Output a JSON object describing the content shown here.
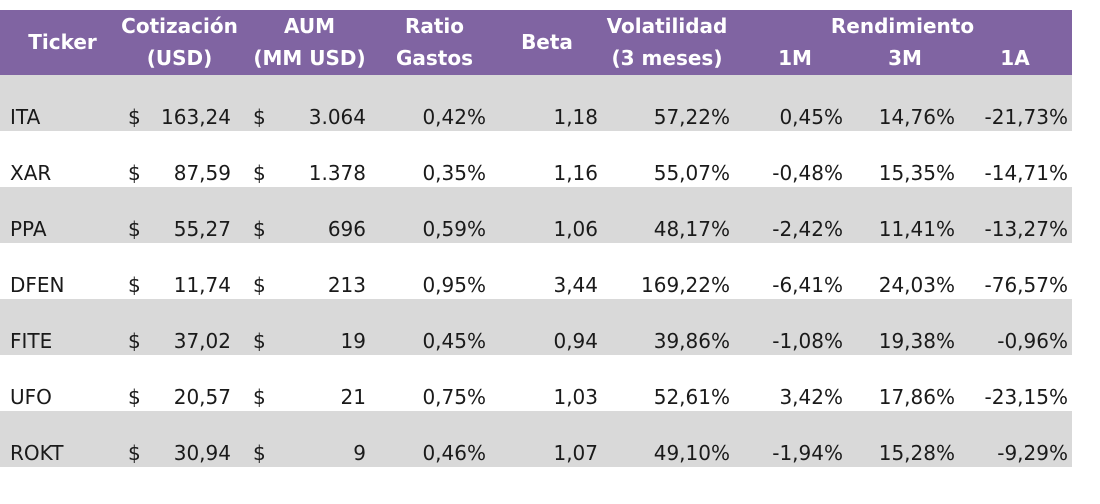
{
  "headers": {
    "ticker": "Ticker",
    "price_line1": "Cotización",
    "price_line2": "(USD)",
    "aum_line1": "AUM",
    "aum_line2": "(MM USD)",
    "ratio_line1": "Ratio",
    "ratio_line2": "Gastos",
    "beta": "Beta",
    "vol_line1": "Volatilidad",
    "vol_line2": "(3 meses)",
    "rend": "Rendimiento",
    "r1m": "1M",
    "r3m": "3M",
    "r1a": "1A"
  },
  "currency_symbol": "$",
  "rows": [
    {
      "ticker": "ITA",
      "price": "163,24",
      "aum": "3.064",
      "ratio": "0,42%",
      "beta": "1,18",
      "vol": "57,22%",
      "r1m": "0,45%",
      "r3m": "14,76%",
      "r1a": "-21,73%"
    },
    {
      "ticker": "XAR",
      "price": "87,59",
      "aum": "1.378",
      "ratio": "0,35%",
      "beta": "1,16",
      "vol": "55,07%",
      "r1m": "-0,48%",
      "r3m": "15,35%",
      "r1a": "-14,71%"
    },
    {
      "ticker": "PPA",
      "price": "55,27",
      "aum": "696",
      "ratio": "0,59%",
      "beta": "1,06",
      "vol": "48,17%",
      "r1m": "-2,42%",
      "r3m": "11,41%",
      "r1a": "-13,27%"
    },
    {
      "ticker": "DFEN",
      "price": "11,74",
      "aum": "213",
      "ratio": "0,95%",
      "beta": "3,44",
      "vol": "169,22%",
      "r1m": "-6,41%",
      "r3m": "24,03%",
      "r1a": "-76,57%"
    },
    {
      "ticker": "FITE",
      "price": "37,02",
      "aum": "19",
      "ratio": "0,45%",
      "beta": "0,94",
      "vol": "39,86%",
      "r1m": "-1,08%",
      "r3m": "19,38%",
      "r1a": "-0,96%"
    },
    {
      "ticker": "UFO",
      "price": "20,57",
      "aum": "21",
      "ratio": "0,75%",
      "beta": "1,03",
      "vol": "52,61%",
      "r1m": "3,42%",
      "r3m": "17,86%",
      "r1a": "-23,15%"
    },
    {
      "ticker": "ROKT",
      "price": "30,94",
      "aum": "9",
      "ratio": "0,46%",
      "beta": "1,07",
      "vol": "49,10%",
      "r1m": "-1,94%",
      "r3m": "15,28%",
      "r1a": "-9,29%"
    }
  ]
}
